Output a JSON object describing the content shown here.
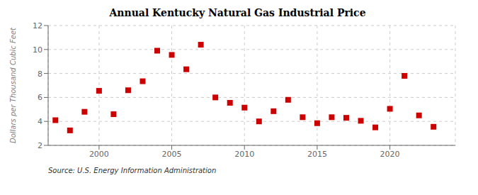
{
  "chart_data": {
    "type": "scatter",
    "title": "Annual Kentucky Natural Gas Industrial Price",
    "ylabel": "Dollars per Thousand Cubic Feet",
    "annotations": [
      "Source: U.S. Energy Information Administration"
    ],
    "x": [
      1997,
      1998,
      1999,
      2000,
      2001,
      2002,
      2003,
      2004,
      2005,
      2006,
      2007,
      2008,
      2009,
      2010,
      2011,
      2012,
      2013,
      2014,
      2015,
      2016,
      2017,
      2018,
      2019,
      2020,
      2021,
      2022,
      2023
    ],
    "values": [
      4.1,
      3.25,
      4.8,
      6.55,
      4.6,
      6.6,
      7.35,
      9.9,
      9.55,
      8.35,
      10.4,
      6.0,
      5.55,
      5.15,
      4.0,
      4.85,
      5.8,
      4.35,
      3.85,
      4.35,
      4.3,
      4.05,
      3.5,
      5.05,
      7.8,
      4.5,
      3.55
    ],
    "xlim": [
      1996.5,
      2024.5
    ],
    "ylim": [
      2,
      12
    ],
    "xticks": [
      2000,
      2005,
      2010,
      2015,
      2020
    ],
    "yticks": [
      2,
      4,
      6,
      8,
      10,
      12
    ],
    "color": "#cc0000",
    "marker": "square",
    "grid": true
  }
}
